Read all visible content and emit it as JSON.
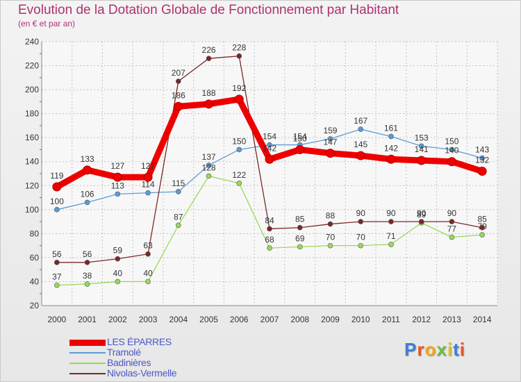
{
  "header": {
    "title": "Evolution de la Dotation Globale de Fonctionnement par Habitant",
    "subtitle": "(en € et par an)"
  },
  "colors": {
    "title": "#b03070",
    "legend_text": "#4a57c6",
    "grid": "#c0c0c0"
  },
  "chart_data": {
    "type": "line",
    "title": "Evolution de la Dotation Globale de Fonctionnement par Habitant",
    "subtitle": "(en € et par an)",
    "xlabel": "",
    "ylabel": "",
    "x": [
      "2000",
      "2001",
      "2002",
      "2003",
      "2004",
      "2005",
      "2006",
      "2007",
      "2008",
      "2009",
      "2010",
      "2011",
      "2012",
      "2013",
      "2014"
    ],
    "ylim": [
      20,
      240
    ],
    "yticks": [
      20,
      40,
      60,
      80,
      100,
      120,
      140,
      160,
      180,
      200,
      220,
      240
    ],
    "grid": true,
    "legend_position": "bottom-left",
    "series": [
      {
        "name": "LES ÉPARRES",
        "color": "#ee0000",
        "emphasis": true,
        "values": [
          119,
          133,
          127,
          127,
          186,
          188,
          192,
          142,
          150,
          147,
          145,
          142,
          141,
          140,
          132
        ]
      },
      {
        "name": "Tramolé",
        "color": "#5b9bd5",
        "values": [
          100,
          106,
          113,
          114,
          115,
          137,
          150,
          154,
          154,
          159,
          167,
          161,
          153,
          150,
          143
        ]
      },
      {
        "name": "Badinières",
        "color": "#99d95a",
        "values": [
          37,
          38,
          40,
          40,
          87,
          128,
          122,
          68,
          69,
          70,
          70,
          71,
          89,
          77,
          79
        ]
      },
      {
        "name": "Nivolas-Vermelle",
        "color": "#7a2828",
        "values": [
          56,
          56,
          59,
          63,
          207,
          226,
          228,
          84,
          85,
          88,
          90,
          90,
          90,
          90,
          85
        ]
      }
    ]
  },
  "logo": {
    "letters": [
      "P",
      "r",
      "o",
      "x",
      "i",
      "t",
      "i"
    ]
  }
}
